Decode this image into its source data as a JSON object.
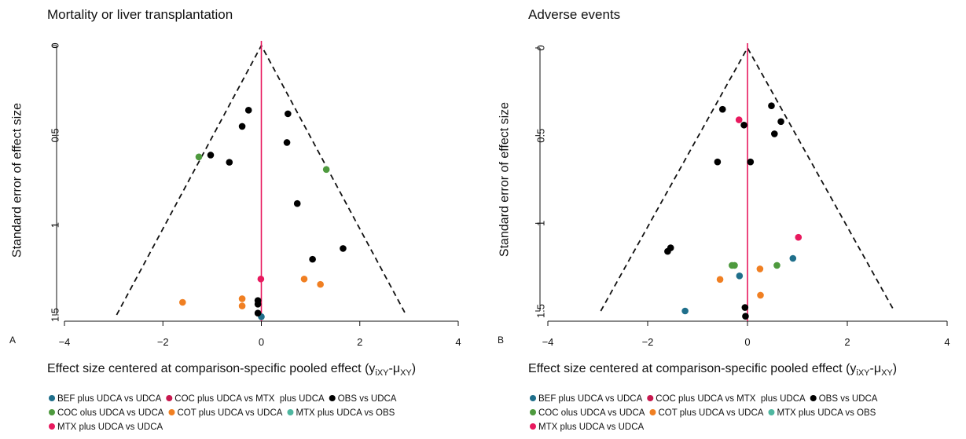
{
  "chart_data": [
    {
      "type": "scatter",
      "subtype": "comparison-adjusted funnel plot",
      "panel": "A",
      "title": "Mortality or liver transplantation",
      "xlabel": "Effect size centered at comparison-specific pooled effect",
      "xlabel_math": {
        "y": "y",
        "y_sub": "iXY",
        "dash": "-",
        "mu": "μ",
        "mu_sub": "XY"
      },
      "ylabel": "Standard error of effect size",
      "xlim": [
        -4,
        4
      ],
      "ylim": [
        0,
        1.5
      ],
      "y_reversed": true,
      "xticks": [
        -4,
        -2,
        0,
        2,
        4
      ],
      "yticks": [
        0,
        0.5,
        1,
        1.5
      ],
      "xtick_labels": [
        "−4",
        "−2",
        "0",
        "2",
        "4"
      ],
      "ytick_labels": [
        "0",
        "0.5",
        "1",
        "1.5"
      ],
      "reference_line_x": 0,
      "funnel_limits": {
        "apex": [
          0,
          0
        ],
        "left_base": [
          -2.94,
          1.5
        ],
        "right_base": [
          2.94,
          1.5
        ]
      },
      "series": [
        {
          "name": "BEF plus UDCA vs UDCA",
          "color": "#1f6f8b",
          "points": [
            [
              0.0,
              1.51
            ]
          ]
        },
        {
          "name": "COC plus UDCA vs MTX  plus UDCA",
          "color": "#c8194f",
          "points": []
        },
        {
          "name": "OBS vs UDCA",
          "color": "#000000",
          "points": [
            [
              -0.26,
              0.36
            ],
            [
              0.54,
              0.38
            ],
            [
              -0.39,
              0.45
            ],
            [
              0.52,
              0.54
            ],
            [
              -1.03,
              0.61
            ],
            [
              -0.65,
              0.65
            ],
            [
              0.73,
              0.88
            ],
            [
              1.66,
              1.13
            ],
            [
              1.04,
              1.19
            ],
            [
              -0.07,
              1.42
            ],
            [
              -0.07,
              1.44
            ],
            [
              -0.07,
              1.49
            ]
          ]
        },
        {
          "name": "COC olus UDCA vs UDCA",
          "color": "#4e9a3e",
          "points": [
            [
              -1.27,
              0.62
            ],
            [
              1.32,
              0.69
            ]
          ]
        },
        {
          "name": "COT plus UDCA vs UDCA",
          "color": "#f07f22",
          "points": [
            [
              -1.6,
              1.43
            ],
            [
              -0.39,
              1.41
            ],
            [
              -0.39,
              1.45
            ],
            [
              0.87,
              1.3
            ],
            [
              1.2,
              1.33
            ]
          ]
        },
        {
          "name": "MTX plus UDCA vs OBS",
          "color": "#4fb7a0",
          "points": []
        },
        {
          "name": "MTX plus UDCA vs UDCA",
          "color": "#e8195e",
          "points": [
            [
              -0.01,
              1.3
            ]
          ]
        }
      ]
    },
    {
      "type": "scatter",
      "subtype": "comparison-adjusted funnel plot",
      "panel": "B",
      "title": "Adverse events",
      "xlabel": "Effect size centered at comparison-specific pooled effect",
      "xlabel_math": {
        "y": "y",
        "y_sub": "iXY",
        "dash": "-",
        "mu": "μ",
        "mu_sub": "XY"
      },
      "ylabel": "Standard error of effect size",
      "xlim": [
        -4,
        4
      ],
      "ylim": [
        0,
        1.5
      ],
      "y_reversed": true,
      "xticks": [
        -4,
        -2,
        0,
        2,
        4
      ],
      "yticks": [
        0,
        0.5,
        1,
        1.5
      ],
      "xtick_labels": [
        "−4",
        "−2",
        "0",
        "2",
        "4"
      ],
      "ytick_labels": [
        "0",
        "0.5",
        "1",
        "1.5"
      ],
      "reference_line_x": 0,
      "funnel_limits": {
        "apex": [
          0,
          0
        ],
        "left_base": [
          -2.94,
          1.5
        ],
        "right_base": [
          2.94,
          1.5
        ]
      },
      "series": [
        {
          "name": "BEF plus UDCA vs UDCA",
          "color": "#1f6f8b",
          "points": [
            [
              -1.25,
              1.5
            ],
            [
              -0.16,
              1.3
            ],
            [
              0.91,
              1.2
            ]
          ]
        },
        {
          "name": "COC plus UDCA vs MTX  plus UDCA",
          "color": "#c8194f",
          "points": []
        },
        {
          "name": "OBS vs UDCA",
          "color": "#000000",
          "points": [
            [
              0.48,
              0.33
            ],
            [
              -0.5,
              0.35
            ],
            [
              0.67,
              0.42
            ],
            [
              -0.07,
              0.44
            ],
            [
              0.54,
              0.49
            ],
            [
              -0.6,
              0.65
            ],
            [
              0.06,
              0.65
            ],
            [
              -1.6,
              1.16
            ],
            [
              -1.54,
              1.14
            ],
            [
              -0.05,
              1.48
            ],
            [
              -0.04,
              1.53
            ]
          ]
        },
        {
          "name": "COC olus UDCA vs UDCA",
          "color": "#4e9a3e",
          "points": [
            [
              -0.31,
              1.24
            ],
            [
              -0.26,
              1.24
            ],
            [
              0.59,
              1.24
            ]
          ]
        },
        {
          "name": "COT plus UDCA vs UDCA",
          "color": "#f07f22",
          "points": [
            [
              -0.55,
              1.32
            ],
            [
              0.25,
              1.26
            ],
            [
              0.26,
              1.41
            ]
          ]
        },
        {
          "name": "MTX plus UDCA vs OBS",
          "color": "#4fb7a0",
          "points": []
        },
        {
          "name": "MTX plus UDCA vs UDCA",
          "color": "#e8195e",
          "points": [
            [
              -0.17,
              0.41
            ],
            [
              1.02,
              1.08
            ]
          ]
        }
      ]
    }
  ],
  "legend": {
    "placement": "bottom",
    "rows": [
      [
        0,
        1,
        2
      ],
      [
        3,
        4,
        5
      ],
      [
        6
      ]
    ]
  }
}
